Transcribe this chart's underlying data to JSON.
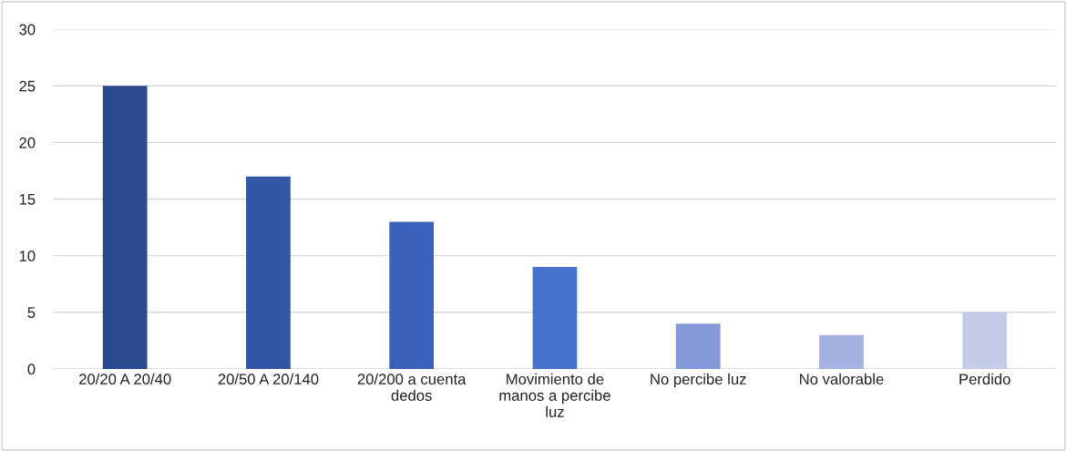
{
  "chart_data": {
    "type": "bar",
    "categories": [
      "20/20 A 20/40",
      "20/50 A 20/140",
      "20/200 a cuenta dedos",
      "Movimiento de manos a percibe luz",
      "No percibe luz",
      "No valorable",
      "Perdido"
    ],
    "values": [
      25,
      17,
      13,
      9,
      4,
      3,
      5
    ],
    "colors": [
      "#2b4a8e",
      "#3156a4",
      "#3a62ba",
      "#4572cc",
      "#8598d8",
      "#a4b2e2",
      "#c4cce8"
    ],
    "ylim": [
      0,
      30
    ],
    "yticks": [
      0,
      5,
      10,
      15,
      20,
      25,
      30
    ],
    "grid": "y"
  }
}
